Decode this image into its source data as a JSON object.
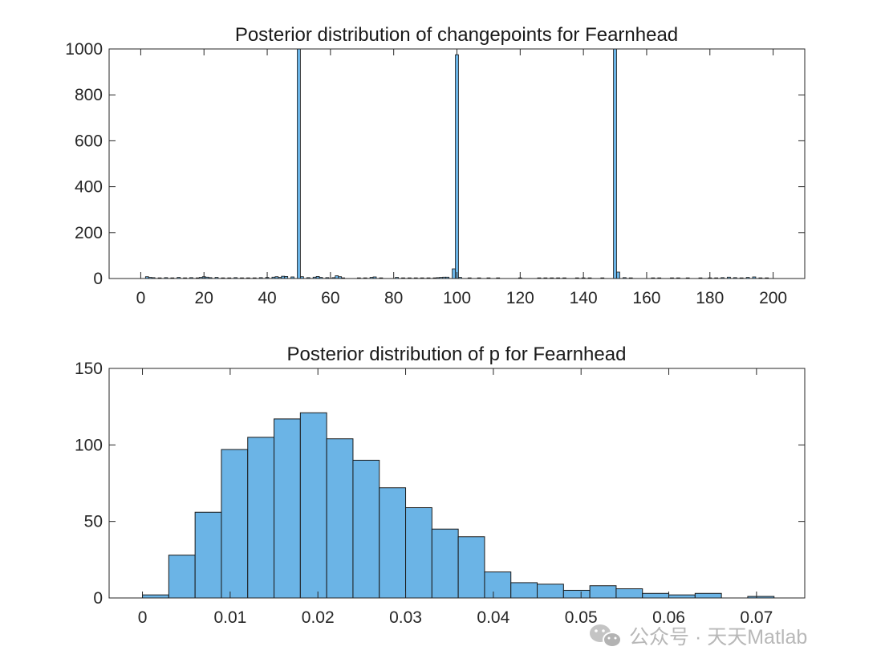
{
  "bar_color": "#6bb4e6",
  "edge_color": "#1a1a1a",
  "chart_data": [
    {
      "type": "bar",
      "title": "Posterior distribution of changepoints for Fearnhead",
      "xlabel": "",
      "ylabel": "",
      "xlim": [
        -10,
        210
      ],
      "ylim": [
        0,
        1000
      ],
      "xticks": [
        0,
        20,
        40,
        60,
        80,
        100,
        120,
        140,
        160,
        180,
        200
      ],
      "yticks": [
        0,
        200,
        400,
        600,
        800,
        1000
      ],
      "grid": false,
      "bin_width": 1,
      "bars": [
        {
          "x": 2,
          "value": 8
        },
        {
          "x": 3,
          "value": 5
        },
        {
          "x": 4,
          "value": 4
        },
        {
          "x": 6,
          "value": 3
        },
        {
          "x": 8,
          "value": 4
        },
        {
          "x": 10,
          "value": 3
        },
        {
          "x": 12,
          "value": 5
        },
        {
          "x": 14,
          "value": 3
        },
        {
          "x": 16,
          "value": 4
        },
        {
          "x": 18,
          "value": 3
        },
        {
          "x": 19,
          "value": 5
        },
        {
          "x": 20,
          "value": 8
        },
        {
          "x": 21,
          "value": 6
        },
        {
          "x": 22,
          "value": 4
        },
        {
          "x": 24,
          "value": 5
        },
        {
          "x": 26,
          "value": 3
        },
        {
          "x": 28,
          "value": 3
        },
        {
          "x": 30,
          "value": 4
        },
        {
          "x": 32,
          "value": 3
        },
        {
          "x": 34,
          "value": 3
        },
        {
          "x": 36,
          "value": 3
        },
        {
          "x": 38,
          "value": 4
        },
        {
          "x": 40,
          "value": 5
        },
        {
          "x": 42,
          "value": 6
        },
        {
          "x": 43,
          "value": 8
        },
        {
          "x": 44,
          "value": 5
        },
        {
          "x": 45,
          "value": 10
        },
        {
          "x": 46,
          "value": 9
        },
        {
          "x": 48,
          "value": 7
        },
        {
          "x": 50,
          "value": 1000
        },
        {
          "x": 51,
          "value": 8
        },
        {
          "x": 53,
          "value": 4
        },
        {
          "x": 55,
          "value": 6
        },
        {
          "x": 56,
          "value": 9
        },
        {
          "x": 57,
          "value": 5
        },
        {
          "x": 59,
          "value": 4
        },
        {
          "x": 61,
          "value": 4
        },
        {
          "x": 62,
          "value": 12
        },
        {
          "x": 63,
          "value": 8
        },
        {
          "x": 64,
          "value": 3
        },
        {
          "x": 69,
          "value": 3
        },
        {
          "x": 71,
          "value": 3
        },
        {
          "x": 73,
          "value": 5
        },
        {
          "x": 74,
          "value": 7
        },
        {
          "x": 76,
          "value": 3
        },
        {
          "x": 81,
          "value": 5
        },
        {
          "x": 83,
          "value": 3
        },
        {
          "x": 85,
          "value": 3
        },
        {
          "x": 87,
          "value": 3
        },
        {
          "x": 89,
          "value": 3
        },
        {
          "x": 91,
          "value": 3
        },
        {
          "x": 93,
          "value": 3
        },
        {
          "x": 94,
          "value": 4
        },
        {
          "x": 95,
          "value": 5
        },
        {
          "x": 96,
          "value": 6
        },
        {
          "x": 97,
          "value": 6
        },
        {
          "x": 99,
          "value": 42
        },
        {
          "x": 100,
          "value": 975
        },
        {
          "x": 101,
          "value": 5
        },
        {
          "x": 104,
          "value": 3
        },
        {
          "x": 107,
          "value": 3
        },
        {
          "x": 110,
          "value": 3
        },
        {
          "x": 113,
          "value": 3
        },
        {
          "x": 120,
          "value": 3
        },
        {
          "x": 126,
          "value": 3
        },
        {
          "x": 128,
          "value": 3
        },
        {
          "x": 130,
          "value": 3
        },
        {
          "x": 132,
          "value": 3
        },
        {
          "x": 134,
          "value": 3
        },
        {
          "x": 138,
          "value": 3
        },
        {
          "x": 140,
          "value": 3
        },
        {
          "x": 142,
          "value": 3
        },
        {
          "x": 146,
          "value": 3
        },
        {
          "x": 150,
          "value": 1000
        },
        {
          "x": 151,
          "value": 28
        },
        {
          "x": 153,
          "value": 4
        },
        {
          "x": 155,
          "value": 3
        },
        {
          "x": 162,
          "value": 3
        },
        {
          "x": 164,
          "value": 3
        },
        {
          "x": 168,
          "value": 3
        },
        {
          "x": 170,
          "value": 3
        },
        {
          "x": 173,
          "value": 3
        },
        {
          "x": 177,
          "value": 3
        },
        {
          "x": 180,
          "value": 3
        },
        {
          "x": 182,
          "value": 3
        },
        {
          "x": 184,
          "value": 4
        },
        {
          "x": 186,
          "value": 6
        },
        {
          "x": 188,
          "value": 4
        },
        {
          "x": 190,
          "value": 3
        },
        {
          "x": 192,
          "value": 5
        },
        {
          "x": 194,
          "value": 7
        },
        {
          "x": 196,
          "value": 3
        },
        {
          "x": 198,
          "value": 3
        }
      ]
    },
    {
      "type": "bar",
      "title": "Posterior distribution of p for Fearnhead",
      "xlabel": "",
      "ylabel": "",
      "xlim": [
        -0.0038,
        0.0755
      ],
      "ylim": [
        0,
        150
      ],
      "xticks": [
        0,
        0.01,
        0.02,
        0.03,
        0.04,
        0.05,
        0.06,
        0.07
      ],
      "yticks": [
        0,
        50,
        100,
        150
      ],
      "grid": false,
      "bin_edges": [
        0,
        0.003,
        0.006,
        0.009,
        0.012,
        0.015,
        0.018,
        0.021,
        0.024,
        0.027,
        0.03,
        0.033,
        0.036,
        0.039,
        0.042,
        0.045,
        0.048,
        0.051,
        0.054,
        0.057,
        0.06,
        0.063,
        0.066,
        0.069,
        0.072
      ],
      "values": [
        2,
        28,
        56,
        97,
        105,
        117,
        121,
        104,
        90,
        72,
        59,
        45,
        40,
        17,
        10,
        9,
        5,
        8,
        6,
        3,
        2,
        3,
        0,
        1
      ]
    }
  ],
  "watermark": {
    "icon": "wechat-icon",
    "text": "公众号 · 天天Matlab"
  }
}
